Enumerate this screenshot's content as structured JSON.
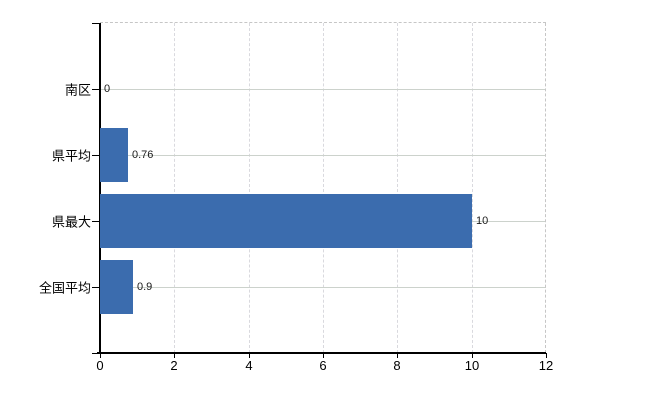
{
  "chart_data": {
    "type": "bar",
    "orientation": "horizontal",
    "categories": [
      "南区",
      "県平均",
      "県最大",
      "全国平均"
    ],
    "values": [
      0,
      0.76,
      10,
      0.9
    ],
    "value_labels": [
      "0",
      "0.76",
      "10",
      "0.9"
    ],
    "x_ticks": [
      0,
      2,
      4,
      6,
      8,
      10,
      12
    ],
    "x_tick_labels": [
      "0",
      "2",
      "4",
      "6",
      "8",
      "10",
      "12"
    ],
    "xlim": [
      0,
      12
    ],
    "grid": true,
    "legend": false,
    "colors": {
      "bar": "#3b6cae",
      "axis": "#000000",
      "grid_horizontal": "#ccd2cc",
      "grid_vertical": "#d9d9de",
      "dashed_border": "#c6c6c6",
      "value_label": "#1a1a1a",
      "tick_label": "#000000"
    }
  }
}
